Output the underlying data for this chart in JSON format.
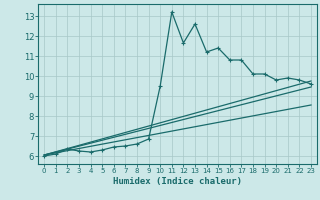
{
  "title": "",
  "xlabel": "Humidex (Indice chaleur)",
  "bg_color": "#cce8e8",
  "line_color": "#1a6b6b",
  "grid_color": "#b8d8d8",
  "xlim": [
    -0.5,
    23.5
  ],
  "ylim": [
    5.6,
    13.6
  ],
  "xticks": [
    0,
    1,
    2,
    3,
    4,
    5,
    6,
    7,
    8,
    9,
    10,
    11,
    12,
    13,
    14,
    15,
    16,
    17,
    18,
    19,
    20,
    21,
    22,
    23
  ],
  "yticks": [
    6,
    7,
    8,
    9,
    10,
    11,
    12,
    13
  ],
  "line1_x": [
    0,
    1,
    2,
    3,
    4,
    5,
    6,
    7,
    8,
    9,
    10,
    11,
    12,
    13,
    14,
    15,
    16,
    17,
    18,
    19,
    20,
    21,
    22,
    23
  ],
  "line1_y": [
    6.0,
    6.1,
    6.35,
    6.25,
    6.2,
    6.3,
    6.45,
    6.5,
    6.6,
    6.85,
    9.5,
    13.2,
    11.65,
    12.6,
    11.2,
    11.4,
    10.8,
    10.8,
    10.1,
    10.1,
    9.8,
    9.9,
    9.8,
    9.6
  ],
  "line2_x": [
    0,
    23
  ],
  "line2_y": [
    6.05,
    9.75
  ],
  "line3_x": [
    0,
    23
  ],
  "line3_y": [
    6.05,
    9.45
  ],
  "line4_x": [
    0,
    23
  ],
  "line4_y": [
    6.05,
    8.55
  ],
  "marker": "P",
  "markersize": 2.5,
  "linewidth": 0.9
}
